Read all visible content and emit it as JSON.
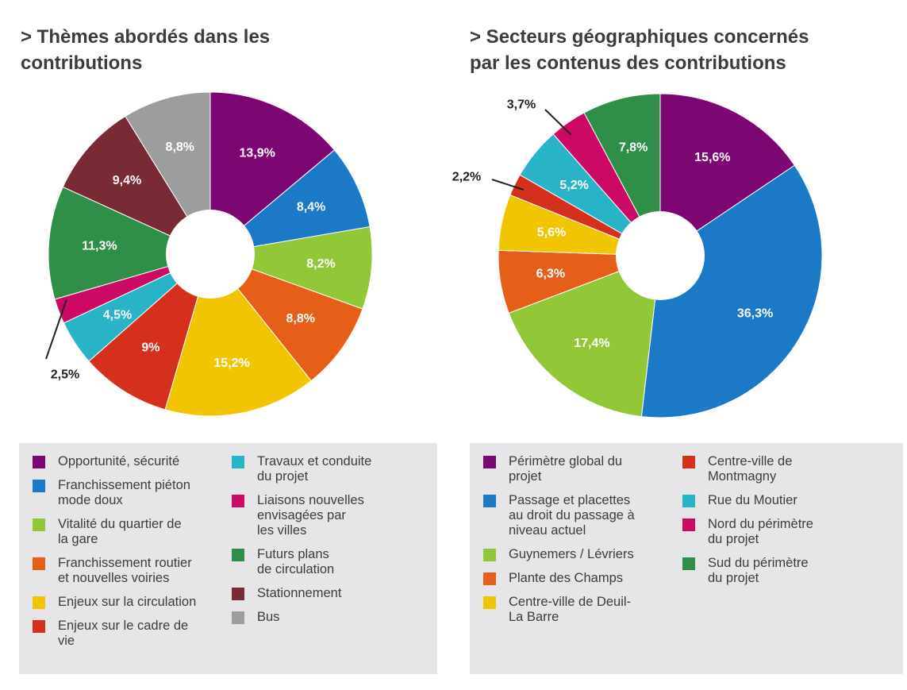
{
  "chart_data": [
    {
      "type": "pie",
      "title": "> Thèmes abordés dans les\ncontributions",
      "series": [
        {
          "label": "Opportunité, sécurité",
          "legend": "Opportunité, sécurité",
          "value": 13.9,
          "text": "13,9%",
          "color": "#7d0772"
        },
        {
          "label": "Franchissement piéton mode doux",
          "legend": "Franchissement piéton\nmode doux",
          "value": 8.4,
          "text": "8,4%",
          "color": "#1c79c8"
        },
        {
          "label": "Vitalité du quartier de la gare",
          "legend": "Vitalité du quartier de\nla gare",
          "value": 8.2,
          "text": "8,2%",
          "color": "#92c738"
        },
        {
          "label": "Franchissement routier et nouvelles voiries",
          "legend": "Franchissement routier\net nouvelles voiries",
          "value": 8.8,
          "text": "8,8%",
          "color": "#e55f18"
        },
        {
          "label": "Enjeux sur la circulation",
          "legend": "Enjeux sur la circulation",
          "value": 15.2,
          "text": "15,2%",
          "color": "#f1c500"
        },
        {
          "label": "Enjeux sur le cadre de vie",
          "legend": "Enjeux sur le cadre de\nvie",
          "value": 9.0,
          "text": "9%",
          "color": "#d5301e"
        },
        {
          "label": "Travaux et conduite du projet",
          "legend": "Travaux et conduite\ndu projet",
          "value": 4.5,
          "text": "4,5%",
          "color": "#28b4c6"
        },
        {
          "label": "Liaisons nouvelles envisagées par les villes",
          "legend": "Liaisons nouvelles\nenvisagées par\nles villes",
          "value": 2.5,
          "text": "2,5%",
          "color": "#cc0a66"
        },
        {
          "label": "Futurs plans de circulation",
          "legend": "Futurs plans\nde circulation",
          "value": 11.3,
          "text": "11,3%",
          "color": "#2f8f48"
        },
        {
          "label": "Stationnement",
          "legend": "Stationnement",
          "value": 9.4,
          "text": "9,4%",
          "color": "#782a35"
        },
        {
          "label": "Bus",
          "legend": "Bus",
          "value": 8.8,
          "text": "8,8%",
          "color": "#9d9d9d"
        }
      ],
      "legend_columns": [
        [
          0,
          1,
          2,
          3,
          4,
          5
        ],
        [
          6,
          7,
          8,
          9,
          10
        ]
      ]
    },
    {
      "type": "pie",
      "title": "> Secteurs géographiques concernés\npar les contenus des contributions",
      "series": [
        {
          "label": "Périmètre global du projet",
          "legend": "Périmètre global du\nprojet",
          "value": 15.6,
          "text": "15,6%",
          "color": "#7d0772"
        },
        {
          "label": "Passage et placettes au droit du passage à niveau actuel",
          "legend": "Passage et placettes\nau droit du passage à\nniveau actuel",
          "value": 36.3,
          "text": "36,3%",
          "color": "#1c79c8"
        },
        {
          "label": "Guynemers / Lévriers",
          "legend": "Guynemers / Lévriers",
          "value": 17.4,
          "text": "17,4%",
          "color": "#92c738"
        },
        {
          "label": "Plante des Champs",
          "legend": "Plante des Champs",
          "value": 6.3,
          "text": "6,3%",
          "color": "#e55f18"
        },
        {
          "label": "Centre-ville de Deuil-La Barre",
          "legend": "Centre-ville de Deuil-\nLa Barre",
          "value": 5.6,
          "text": "5,6%",
          "color": "#f1c500"
        },
        {
          "label": "Centre-ville de Montmagny",
          "legend": "Centre-ville de\nMontmagny",
          "value": 2.2,
          "text": "2,2%",
          "color": "#d5301e"
        },
        {
          "label": "Rue du Moutier",
          "legend": "Rue du Moutier",
          "value": 5.2,
          "text": "5,2%",
          "color": "#28b4c6"
        },
        {
          "label": "Nord du périmètre du projet",
          "legend": "Nord du périmètre\ndu projet",
          "value": 3.7,
          "text": "3,7%",
          "color": "#cc0a66"
        },
        {
          "label": "Sud du périmètre du projet",
          "legend": "Sud du périmètre\ndu projet",
          "value": 7.8,
          "text": "7,8%",
          "color": "#2f8f48"
        }
      ],
      "legend_columns": [
        [
          0,
          1,
          2,
          3,
          4
        ],
        [
          5,
          6,
          7,
          8
        ]
      ]
    }
  ]
}
